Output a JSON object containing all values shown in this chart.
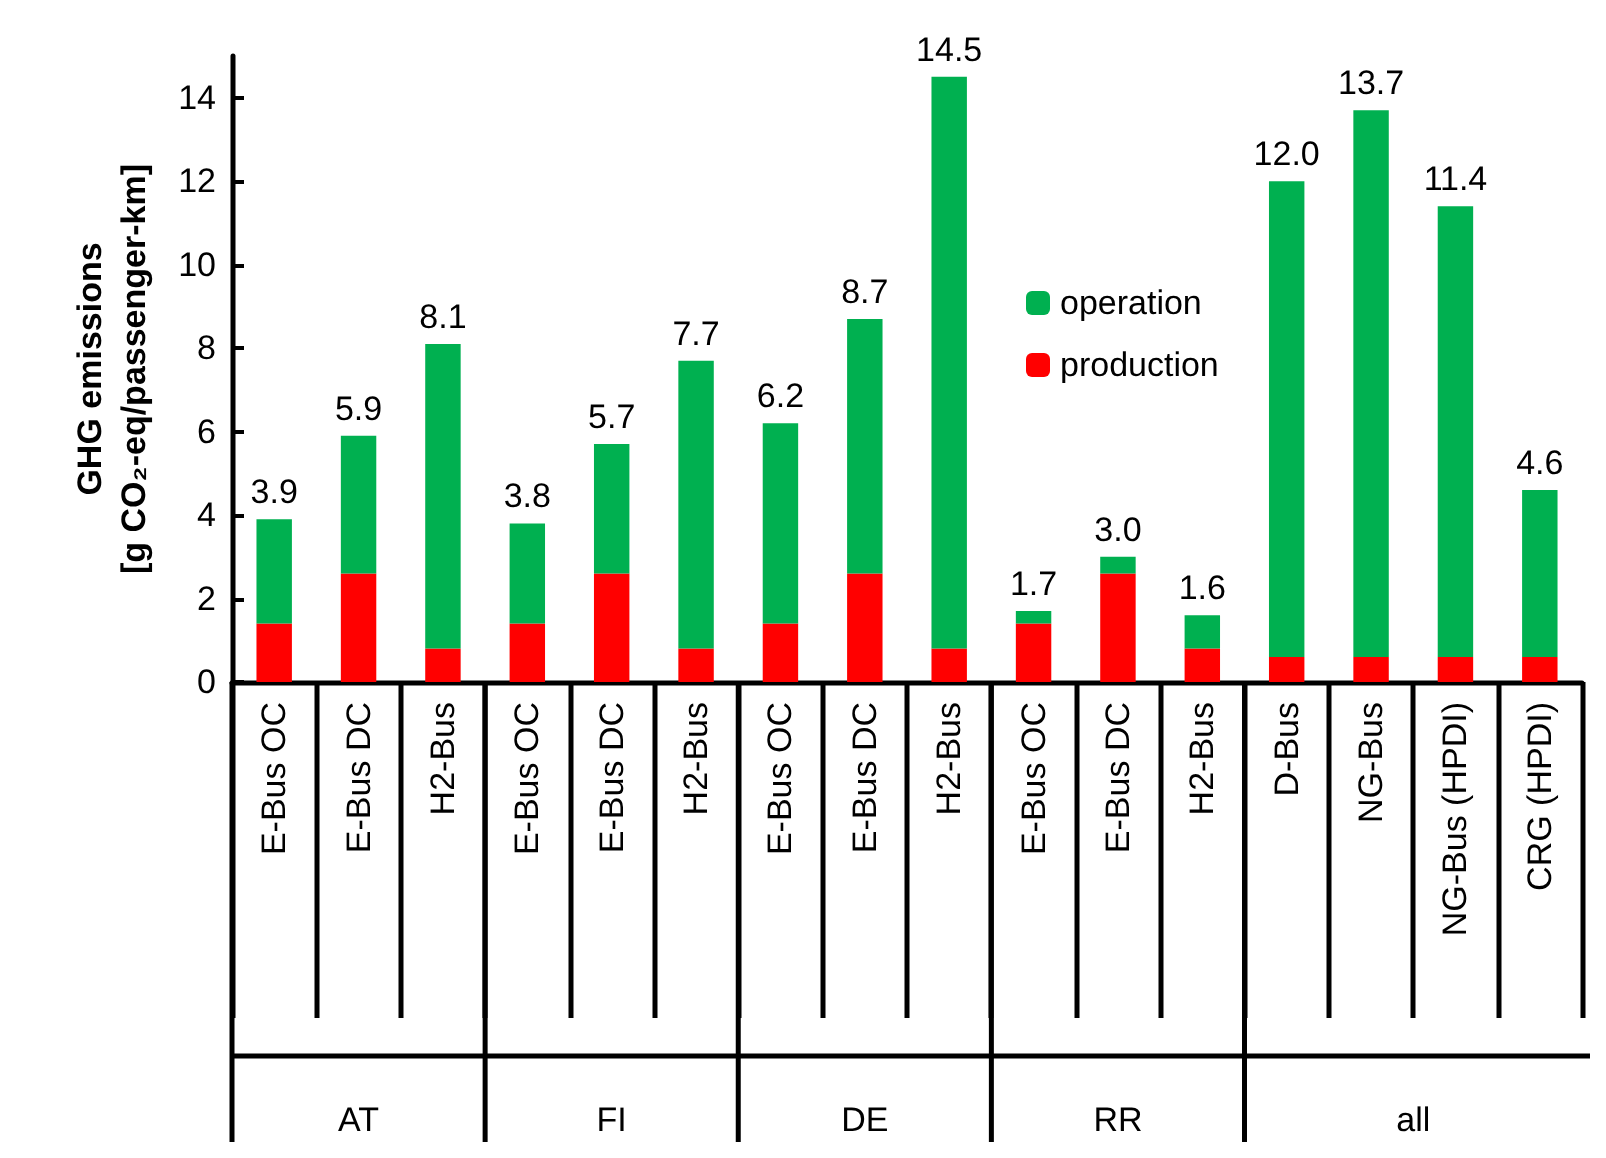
{
  "chart_data": {
    "type": "bar",
    "stacked": true,
    "ylabel": "GHG emissions\n[g CO₂-eq/passenger-km]",
    "categories": [
      "E-Bus OC",
      "E-Bus DC",
      "H2-Bus",
      "E-Bus OC",
      "E-Bus DC",
      "H2-Bus",
      "E-Bus OC",
      "E-Bus DC",
      "H2-Bus",
      "E-Bus OC",
      "E-Bus DC",
      "H2-Bus",
      "D-Bus",
      "NG-Bus",
      "NG-Bus (HPDI)",
      "CRG (HPDI)"
    ],
    "series": [
      {
        "name": "production",
        "color": "#ff0000",
        "values": [
          1.4,
          2.6,
          0.8,
          1.4,
          2.6,
          0.8,
          1.4,
          2.6,
          0.8,
          1.4,
          2.6,
          0.8,
          0.6,
          0.6,
          0.6,
          0.6
        ]
      },
      {
        "name": "operation",
        "color": "#00b050",
        "values": [
          2.5,
          3.3,
          7.3,
          2.4,
          3.1,
          6.9,
          4.8,
          6.1,
          13.7,
          0.3,
          0.4,
          0.8,
          11.4,
          13.1,
          10.8,
          4.0
        ]
      }
    ],
    "totals": [
      "3.9",
      "5.9",
      "8.1",
      "3.8",
      "5.7",
      "7.7",
      "6.2",
      "8.7",
      "14.5",
      "1.7",
      "3.0",
      "1.6",
      "12.0",
      "13.7",
      "11.4",
      "4.6"
    ],
    "annotations": [
      "AT",
      "FI",
      "DE",
      "RR",
      "all"
    ],
    "ylim": [
      0,
      15
    ],
    "yticks": [
      0,
      2,
      4,
      6,
      8,
      10,
      12,
      14
    ],
    "grid": false,
    "legend": "top right"
  }
}
